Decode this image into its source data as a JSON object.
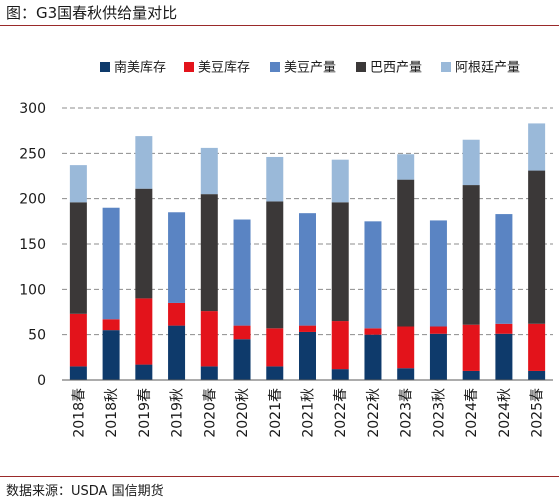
{
  "title": "图：G3国春秋供给量对比",
  "source": "数据来源：USDA   国信期货",
  "chart_data": {
    "type": "bar",
    "stacked": true,
    "categories": [
      "2018春",
      "2018秋",
      "2019春",
      "2019秋",
      "2020春",
      "2020秋",
      "2021春",
      "2021秋",
      "2022春",
      "2022秋",
      "2023春",
      "2023秋",
      "2024春",
      "2024秋",
      "2025春"
    ],
    "series": [
      {
        "name": "南美库存",
        "color": "#0e3a6b",
        "values": [
          15,
          55,
          17,
          60,
          15,
          45,
          15,
          53,
          12,
          50,
          13,
          51,
          10,
          51,
          10
        ]
      },
      {
        "name": "美豆库存",
        "color": "#e3131b",
        "values": [
          58,
          12,
          73,
          25,
          61,
          15,
          42,
          7,
          53,
          7,
          46,
          8,
          51,
          11,
          52
        ]
      },
      {
        "name": "美豆产量",
        "color": "#5a84c3",
        "values": [
          0,
          123,
          0,
          100,
          0,
          117,
          0,
          124,
          0,
          118,
          0,
          117,
          0,
          121,
          0
        ]
      },
      {
        "name": "巴西产量",
        "color": "#3b3838",
        "values": [
          123,
          0,
          121,
          0,
          129,
          0,
          140,
          0,
          131,
          0,
          162,
          0,
          154,
          0,
          169
        ]
      },
      {
        "name": "阿根廷产量",
        "color": "#9ab9d9",
        "values": [
          41,
          0,
          58,
          0,
          51,
          0,
          49,
          0,
          47,
          0,
          28,
          0,
          50,
          0,
          52
        ]
      }
    ],
    "ylim": [
      0,
      300
    ],
    "yticks": [
      0,
      50,
      100,
      150,
      200,
      250,
      300
    ],
    "legend_position": "top",
    "grid": true
  }
}
